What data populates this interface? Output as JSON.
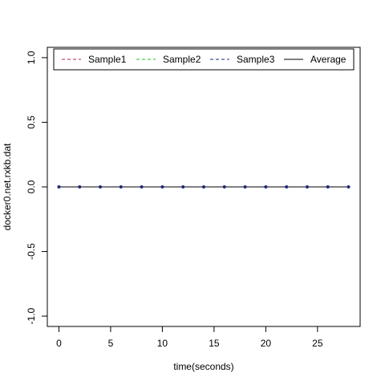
{
  "chart_data": {
    "type": "line",
    "title": "",
    "xlabel": "time(seconds)",
    "ylabel": "docker0.net.rxkb.dat",
    "xlim": [
      -1.12,
      29.12
    ],
    "ylim": [
      -1.08,
      1.08
    ],
    "x_ticks": [
      {
        "value": 0,
        "label": "0"
      },
      {
        "value": 5,
        "label": "5"
      },
      {
        "value": 10,
        "label": "10"
      },
      {
        "value": 15,
        "label": "15"
      },
      {
        "value": 20,
        "label": "20"
      },
      {
        "value": 25,
        "label": "25"
      }
    ],
    "y_ticks": [
      {
        "value": -1.0,
        "label": "-1.0"
      },
      {
        "value": -0.5,
        "label": "-0.5"
      },
      {
        "value": 0.0,
        "label": "0.0"
      },
      {
        "value": 0.5,
        "label": "0.5"
      },
      {
        "value": 1.0,
        "label": "1.0"
      }
    ],
    "x": [
      0,
      2,
      4,
      6,
      8,
      10,
      12,
      14,
      16,
      18,
      20,
      22,
      24,
      26,
      28
    ],
    "series": [
      {
        "name": "Sample1",
        "color": "#C2185B",
        "dash": "dashed",
        "values": [
          0,
          0,
          0,
          0,
          0,
          0,
          0,
          0,
          0,
          0,
          0,
          0,
          0,
          0,
          0
        ]
      },
      {
        "name": "Sample2",
        "color": "#22C322",
        "dash": "dashed",
        "values": [
          0,
          0,
          0,
          0,
          0,
          0,
          0,
          0,
          0,
          0,
          0,
          0,
          0,
          0,
          0
        ]
      },
      {
        "name": "Sample3",
        "color": "#1E2A7A",
        "dash": "dashed",
        "values": [
          0,
          0,
          0,
          0,
          0,
          0,
          0,
          0,
          0,
          0,
          0,
          0,
          0,
          0,
          0
        ]
      },
      {
        "name": "Average",
        "color": "#000000",
        "dash": "solid",
        "values": [
          0,
          0,
          0,
          0,
          0,
          0,
          0,
          0,
          0,
          0,
          0,
          0,
          0,
          0,
          0
        ]
      }
    ],
    "point_color": "#1E2A7A",
    "legend_position": "top",
    "grid": false
  }
}
